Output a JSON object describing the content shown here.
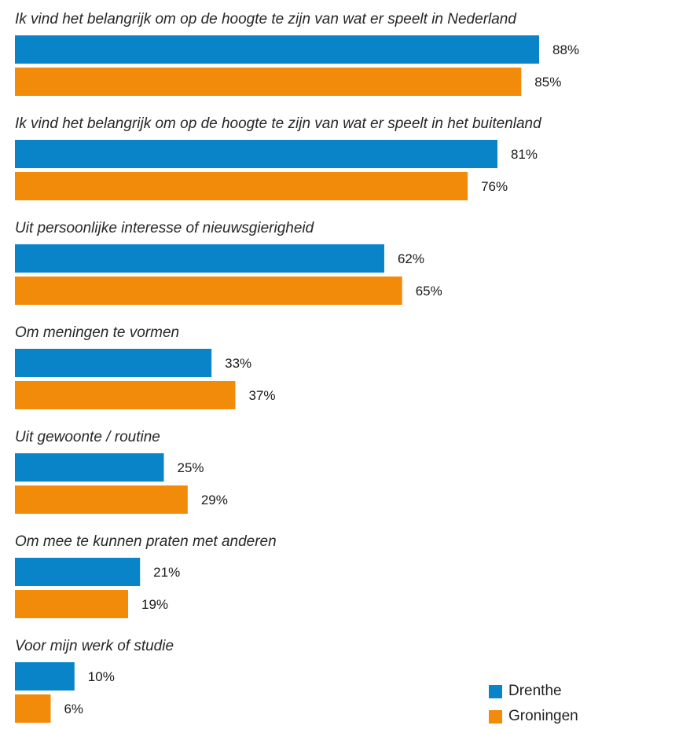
{
  "chart_data": {
    "type": "bar",
    "orientation": "horizontal",
    "categories": [
      "Ik vind het belangrijk om op de hoogte te zijn van wat er speelt in Nederland",
      "Ik vind het belangrijk om op de hoogte te zijn van wat er speelt in het buitenland",
      "Uit persoonlijke interesse of nieuwsgierigheid",
      "Om meningen te vormen",
      "Uit gewoonte / routine",
      "Om mee te kunnen praten met anderen",
      "Voor mijn werk of studie"
    ],
    "series": [
      {
        "name": "Drenthe",
        "color": "#0a84c9",
        "values": [
          88,
          81,
          62,
          33,
          25,
          21,
          10
        ],
        "labels": [
          "88%",
          "81%",
          "62%",
          "33%",
          "25%",
          "21%",
          "10%"
        ]
      },
      {
        "name": "Groningen",
        "color": "#f28a0a",
        "values": [
          85,
          76,
          65,
          37,
          29,
          19,
          6
        ],
        "labels": [
          "85%",
          "76%",
          "65%",
          "37%",
          "29%",
          "19%",
          "6%"
        ]
      }
    ],
    "xlim": [
      0,
      100
    ],
    "grid": false,
    "legend_position": "bottom-right"
  },
  "legend": {
    "items": [
      "Drenthe",
      "Groningen"
    ]
  }
}
